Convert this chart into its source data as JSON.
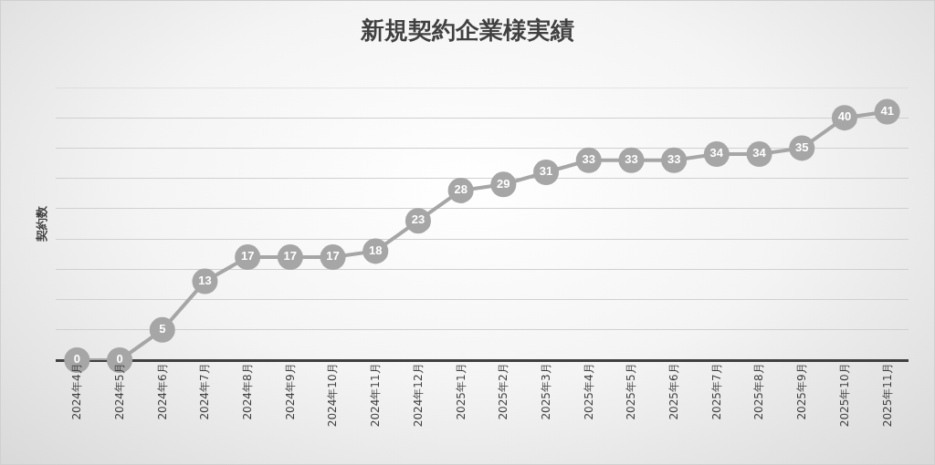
{
  "chart_data": {
    "type": "line",
    "title": "新規契約企業様実績",
    "ylabel": "契約数",
    "categories": [
      "2024年4月",
      "2024年5月",
      "2024年6月",
      "2024年7月",
      "2024年8月",
      "2024年9月",
      "2024年10月",
      "2024年11月",
      "2024年12月",
      "2025年1月",
      "2025年2月",
      "2025年3月",
      "2025年4月",
      "2025年5月",
      "2025年6月",
      "2025年7月",
      "2025年8月",
      "2025年9月",
      "2025年10月",
      "2025年11月"
    ],
    "values": [
      0,
      0,
      5,
      13,
      17,
      17,
      17,
      18,
      23,
      28,
      29,
      31,
      33,
      33,
      33,
      34,
      34,
      35,
      40,
      41
    ],
    "color": "#a6a6a6",
    "marker": "circle",
    "line_style": "solid",
    "data_labels": true,
    "grid": "y",
    "tick_labels": "x",
    "ylim": [
      0,
      45
    ],
    "yticks": [
      {
        "value": 0,
        "label": null
      },
      {
        "value": 5,
        "label": null
      },
      {
        "value": 10,
        "label": null
      },
      {
        "value": 15,
        "label": null
      },
      {
        "value": 20,
        "label": null
      },
      {
        "value": 25,
        "label": null
      },
      {
        "value": 30,
        "label": null
      },
      {
        "value": 35,
        "label": null
      },
      {
        "value": 40,
        "label": null
      },
      {
        "value": 45,
        "label": null
      }
    ]
  }
}
